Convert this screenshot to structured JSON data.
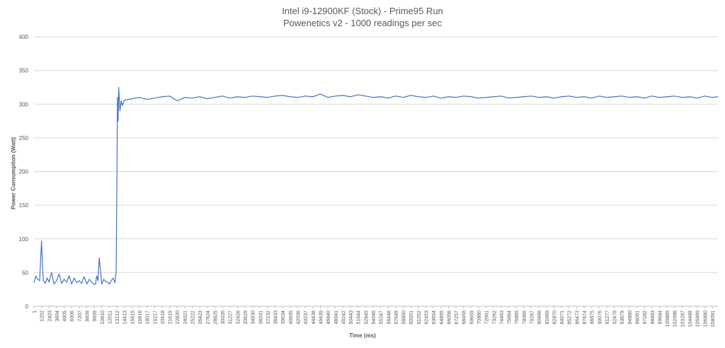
{
  "chart_data": {
    "type": "line",
    "title": "Intel i9-12900KF (Stock) - Prime95 Run",
    "subtitle": "Powenetics v2 - 1000 readings per sec",
    "xlabel": "Time (ms)",
    "ylabel": "Power Consumption (Watt)",
    "ylim": [
      0,
      400
    ],
    "yticks": [
      0,
      50,
      100,
      150,
      200,
      250,
      300,
      350,
      400
    ],
    "xlim": [
      1,
      109000
    ],
    "grid": true,
    "legend": "none",
    "x_tick_labels": [
      "1",
      "1202",
      "2403",
      "3604",
      "4805",
      "6006",
      "7207",
      "8408",
      "9609",
      "10810",
      "12011",
      "13212",
      "14413",
      "15615",
      "16816",
      "18017",
      "19217",
      "20418",
      "21619",
      "22820",
      "24021",
      "25222",
      "26423",
      "27624",
      "28825",
      "30026",
      "31227",
      "32428",
      "33629",
      "34830",
      "36031",
      "37232",
      "38433",
      "39634",
      "40835",
      "42036",
      "43237",
      "44438",
      "45639",
      "46840",
      "48041",
      "49242",
      "50443",
      "51644",
      "52845",
      "54046",
      "55247",
      "56448",
      "57649",
      "58850",
      "60051",
      "61252",
      "62453",
      "63654",
      "64855",
      "66056",
      "67257",
      "68458",
      "69659",
      "70860",
      "72061",
      "73262",
      "74463",
      "75664",
      "76865",
      "78066",
      "79267",
      "80468",
      "81669",
      "82870",
      "84071",
      "85272",
      "86473",
      "87674",
      "88875",
      "90076",
      "91277",
      "92478",
      "93679",
      "94880",
      "96081",
      "97282",
      "98483",
      "99684",
      "100885",
      "102086",
      "103287",
      "104488",
      "105689",
      "106890",
      "108091"
    ],
    "series": [
      {
        "color": "#4472C4",
        "x": [
          1,
          300,
          600,
          900,
          1202,
          1350,
          1500,
          1800,
          2100,
          2403,
          2800,
          3200,
          3604,
          4000,
          4400,
          4805,
          5200,
          5600,
          6006,
          6400,
          6800,
          7207,
          7600,
          8000,
          8408,
          8800,
          9200,
          9609,
          9800,
          10000,
          10200,
          10400,
          10810,
          11100,
          11400,
          11700,
          12011,
          12300,
          12600,
          12900,
          13100,
          13212,
          13300,
          13400,
          13500,
          13700,
          13900,
          14100,
          14413,
          15615,
          16816,
          18017,
          19217,
          20418,
          21619,
          22820,
          24021,
          25222,
          26423,
          27624,
          28825,
          30026,
          31227,
          32428,
          33629,
          34830,
          36031,
          37232,
          38433,
          39634,
          40835,
          42036,
          43237,
          44438,
          45639,
          46840,
          48041,
          49242,
          50443,
          51644,
          52845,
          54046,
          55247,
          56448,
          57649,
          58850,
          60051,
          61252,
          62453,
          63654,
          64855,
          66056,
          67257,
          68458,
          69659,
          70860,
          72061,
          73262,
          74463,
          75664,
          76865,
          78066,
          79267,
          80468,
          81669,
          82870,
          84071,
          85272,
          86473,
          87674,
          88875,
          90076,
          91277,
          92478,
          93679,
          94880,
          96081,
          97282,
          98483,
          99684,
          100885,
          102086,
          103287,
          104488,
          105689,
          106890,
          108091,
          109000
        ],
        "y": [
          35,
          45,
          40,
          38,
          97,
          60,
          38,
          34,
          42,
          36,
          50,
          33,
          38,
          48,
          34,
          40,
          36,
          45,
          33,
          42,
          35,
          38,
          34,
          44,
          33,
          40,
          36,
          32,
          33,
          45,
          38,
          72,
          33,
          40,
          37,
          36,
          33,
          38,
          42,
          35,
          52,
          180,
          310,
          275,
          325,
          290,
          305,
          298,
          306,
          308,
          310,
          307,
          309,
          311,
          312,
          305,
          310,
          309,
          311,
          308,
          310,
          312,
          309,
          311,
          310,
          312,
          311,
          310,
          312,
          313,
          311,
          310,
          312,
          311,
          315,
          310,
          312,
          313,
          311,
          314,
          312,
          310,
          311,
          309,
          312,
          310,
          313,
          311,
          310,
          312,
          309,
          311,
          310,
          312,
          311,
          309,
          310,
          311,
          312,
          309,
          310,
          311,
          312,
          310,
          311,
          309,
          311,
          312,
          310,
          311,
          309,
          312,
          310,
          311,
          312,
          310,
          311,
          309,
          312,
          310,
          311,
          312,
          310,
          311,
          309,
          312,
          310,
          311
        ]
      }
    ]
  }
}
